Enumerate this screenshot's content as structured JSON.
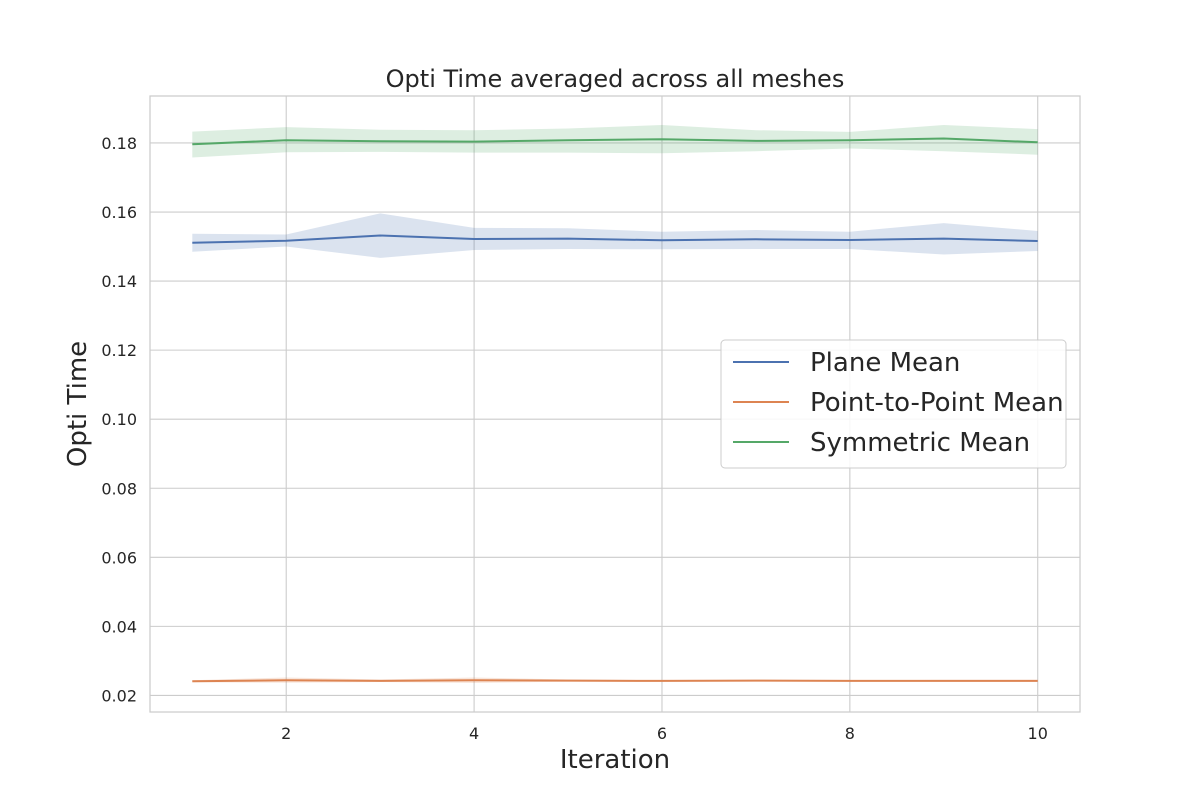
{
  "chart_data": {
    "type": "line",
    "title": "Opti Time averaged across all meshes",
    "xlabel": "Iteration",
    "ylabel": "Opti Time",
    "xlim": [
      0.55,
      10.45
    ],
    "ylim": [
      0.0152,
      0.1936
    ],
    "xticks": [
      2,
      4,
      6,
      8,
      10
    ],
    "yticks": [
      0.02,
      0.04,
      0.06,
      0.08,
      0.1,
      0.12,
      0.14,
      0.16,
      0.18
    ],
    "ytick_labels": [
      "0.02",
      "0.04",
      "0.06",
      "0.08",
      "0.10",
      "0.12",
      "0.14",
      "0.16",
      "0.18"
    ],
    "grid": true,
    "legend_position": "center-right",
    "x": [
      1,
      2,
      3,
      4,
      5,
      6,
      7,
      8,
      9,
      10
    ],
    "series": [
      {
        "name": "Plane Mean",
        "color": "#4c72b0",
        "values": [
          0.1511,
          0.1517,
          0.1532,
          0.1522,
          0.1523,
          0.1518,
          0.1521,
          0.1519,
          0.1523,
          0.1516
        ],
        "band_low": [
          0.1485,
          0.15,
          0.1467,
          0.149,
          0.1493,
          0.1492,
          0.1493,
          0.1493,
          0.1477,
          0.1487
        ],
        "band_high": [
          0.1537,
          0.1535,
          0.1596,
          0.1554,
          0.1553,
          0.1543,
          0.1548,
          0.1543,
          0.1568,
          0.1545
        ]
      },
      {
        "name": "Point-to-Point Mean",
        "color": "#dd8452",
        "values": [
          0.0241,
          0.0244,
          0.0242,
          0.0244,
          0.0243,
          0.0242,
          0.0243,
          0.0242,
          0.0242,
          0.0242
        ],
        "band_low": [
          0.0238,
          0.0237,
          0.0239,
          0.0236,
          0.024,
          0.024,
          0.0241,
          0.0241,
          0.024,
          0.024
        ],
        "band_high": [
          0.0244,
          0.0252,
          0.0246,
          0.0252,
          0.0246,
          0.0244,
          0.0245,
          0.0244,
          0.0245,
          0.0245
        ]
      },
      {
        "name": "Symmetric Mean",
        "color": "#55a868",
        "values": [
          0.1796,
          0.1808,
          0.1805,
          0.1804,
          0.1808,
          0.1811,
          0.1806,
          0.1808,
          0.1813,
          0.1802
        ],
        "band_low": [
          0.1758,
          0.1773,
          0.1774,
          0.1772,
          0.1772,
          0.177,
          0.1776,
          0.1784,
          0.1776,
          0.1766
        ],
        "band_high": [
          0.1833,
          0.1846,
          0.1838,
          0.1837,
          0.1842,
          0.1852,
          0.1837,
          0.1832,
          0.1852,
          0.184
        ]
      }
    ]
  }
}
